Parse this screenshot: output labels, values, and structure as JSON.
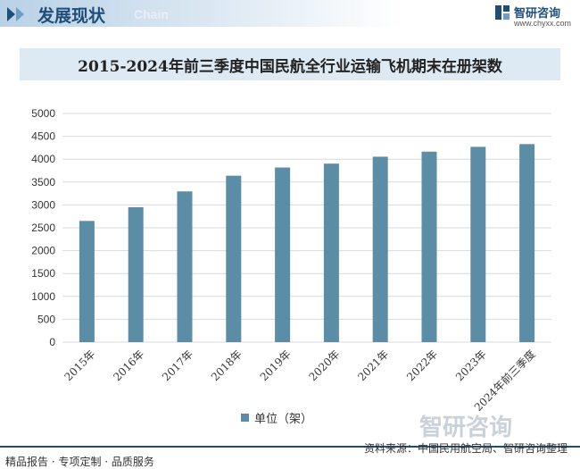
{
  "header": {
    "title": "发展现状",
    "subtitle": "Chain"
  },
  "brand": {
    "name": "智研咨询",
    "url": "www.chyxx.com",
    "watermark": "智研咨询"
  },
  "colors": {
    "bar": "#5b8ea6",
    "accent": "#1f4e79",
    "grid": "#d9d9d9"
  },
  "chart_data": {
    "type": "bar",
    "title": "2015-2024年前三季度中国民航全行业运输飞机期末在册架数",
    "categories": [
      "2015年",
      "2016年",
      "2017年",
      "2018年",
      "2019年",
      "2020年",
      "2021年",
      "2022年",
      "2023年",
      "2024年前三季度"
    ],
    "series": [
      {
        "name": "单位（架）",
        "values": [
          2650,
          2950,
          3296,
          3639,
          3818,
          3903,
          4054,
          4165,
          4270,
          4330
        ]
      }
    ],
    "ylim": [
      0,
      5000
    ],
    "yticks": [
      0,
      500,
      1000,
      1500,
      2000,
      2500,
      3000,
      3500,
      4000,
      4500,
      5000
    ],
    "grid": true,
    "legend": "bottom"
  },
  "footer": {
    "left": "精品报告 · 专项定制 · 品质服务",
    "source": "资料来源：中国民用航空局、智研咨询整理"
  }
}
